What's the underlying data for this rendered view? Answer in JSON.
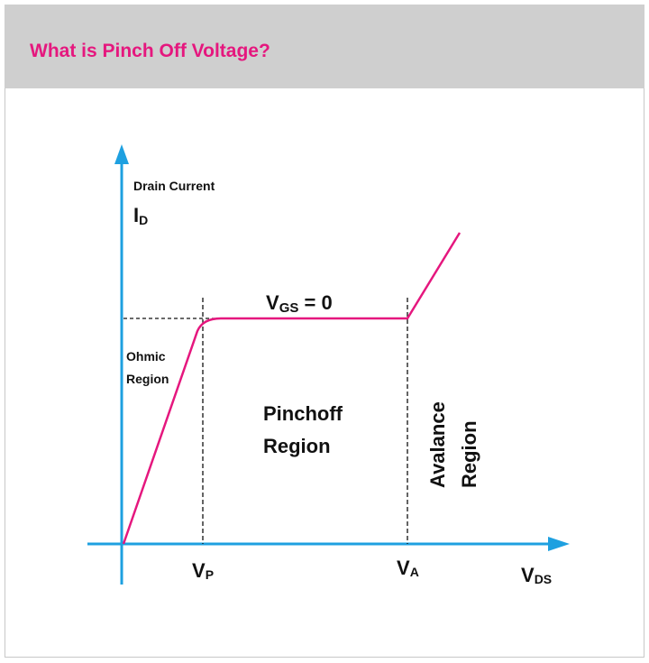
{
  "header": {
    "title": "What is Pinch Off Voltage?"
  },
  "diagram": {
    "y_axis_label": "Drain Current",
    "y_axis_symbol": {
      "main": "I",
      "sub": "D"
    },
    "x_axis_symbol": {
      "main": "V",
      "sub": "DS"
    },
    "curve_label": {
      "main": "V",
      "sub": "GS",
      "rest": " = 0"
    },
    "markers": [
      {
        "main": "V",
        "sub": "P"
      },
      {
        "main": "V",
        "sub": "A"
      }
    ],
    "regions": {
      "ohmic": [
        "Ohmic",
        "Region"
      ],
      "pinchoff": [
        "Pinchoff",
        "Region"
      ],
      "avalanche": [
        "Avalance",
        "Region"
      ]
    },
    "colors": {
      "axis": "#1ea0e0",
      "curve": "#e5177e",
      "title": "#e5177e",
      "header_bg": "#cfcfcf"
    }
  }
}
